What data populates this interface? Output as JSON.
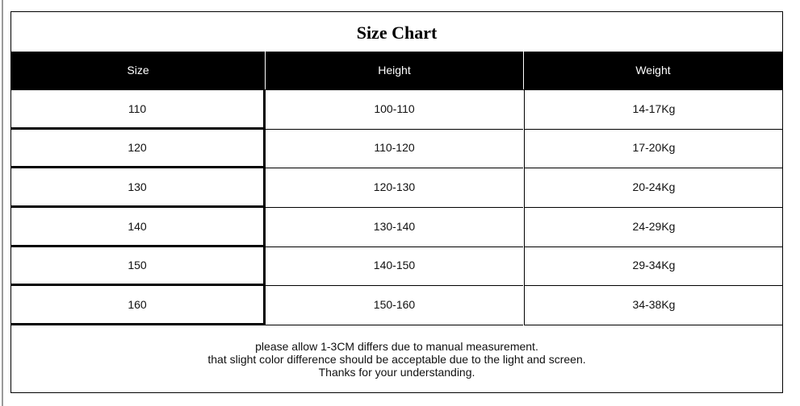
{
  "title": "Size Chart",
  "columns": [
    "Size",
    "Height",
    "Weight"
  ],
  "rows": [
    [
      "110",
      "100-110",
      "14-17Kg"
    ],
    [
      "120",
      "110-120",
      "17-20Kg"
    ],
    [
      "130",
      "120-130",
      "20-24Kg"
    ],
    [
      "140",
      "130-140",
      "24-29Kg"
    ],
    [
      "150",
      "140-150",
      "29-34Kg"
    ],
    [
      "160",
      "150-160",
      "34-38Kg"
    ]
  ],
  "notes": [
    "please allow 1-3CM differs due to manual measurement.",
    "that slight color difference should be acceptable due to the light and screen.",
    "Thanks for your understanding."
  ]
}
